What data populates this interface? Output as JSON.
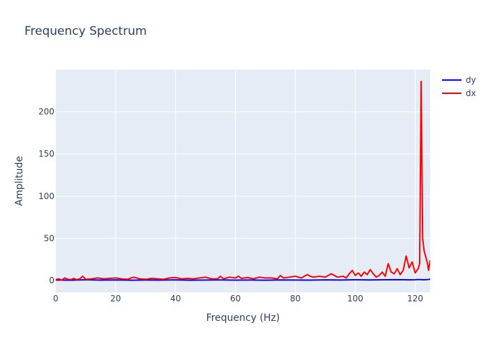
{
  "chart_data": {
    "type": "line",
    "title": "Frequency Spectrum",
    "xlabel": "Frequency (Hz)",
    "ylabel": "Amplitude",
    "xlim": [
      0,
      125
    ],
    "ylim": [
      -14,
      250
    ],
    "xticks": [
      0,
      20,
      40,
      60,
      80,
      100,
      120
    ],
    "xtick_labels": [
      "0",
      "20",
      "40",
      "60",
      "80",
      "100",
      "120"
    ],
    "yticks": [
      0,
      50,
      100,
      150,
      200
    ],
    "ytick_labels": [
      "0",
      "50",
      "100",
      "150",
      "200"
    ],
    "grid": true,
    "legend_position": "top-right",
    "plot_bgcolor": "#e5ecf6",
    "series": [
      {
        "name": "dy",
        "color": "#0000ff",
        "x": [
          0,
          5,
          10,
          15,
          20,
          25,
          30,
          35,
          40,
          45,
          50,
          55,
          60,
          65,
          70,
          75,
          80,
          85,
          90,
          95,
          100,
          105,
          110,
          115,
          118,
          120,
          121,
          122,
          123,
          124,
          125
        ],
        "y": [
          0.5,
          0.3,
          0.8,
          0.4,
          0.6,
          0.3,
          0.5,
          0.4,
          0.7,
          0.3,
          0.5,
          0.6,
          0.4,
          0.5,
          0.3,
          0.6,
          0.5,
          0.4,
          0.7,
          0.5,
          0.9,
          0.6,
          0.8,
          1.0,
          0.7,
          0.9,
          1.2,
          1.0,
          0.8,
          1.1,
          1.5
        ]
      },
      {
        "name": "dx",
        "color": "#ff0000",
        "x": [
          0,
          1,
          2,
          3,
          4,
          5,
          6,
          7,
          8,
          9,
          10,
          12,
          14,
          16,
          18,
          20,
          22,
          24,
          26,
          28,
          30,
          32,
          34,
          36,
          38,
          40,
          42,
          44,
          46,
          48,
          50,
          52,
          54,
          55,
          56,
          58,
          60,
          61,
          62,
          64,
          66,
          68,
          70,
          72,
          74,
          75,
          76,
          78,
          80,
          82,
          84,
          85,
          86,
          88,
          90,
          92,
          93,
          94,
          96,
          97,
          98,
          99,
          100,
          101,
          102,
          103,
          104,
          105,
          106,
          107,
          108,
          109,
          110,
          111,
          112,
          113,
          114,
          115,
          116,
          117,
          118,
          119,
          120,
          121,
          121.5,
          122,
          122.5,
          123,
          124,
          124.5,
          125
        ],
        "y": [
          1,
          2,
          0.5,
          3,
          1.5,
          1,
          2.5,
          1,
          2,
          5,
          1.5,
          2,
          3,
          2,
          2.5,
          3,
          2,
          1.5,
          4,
          2,
          1.5,
          2.5,
          2,
          1.5,
          3,
          3.5,
          2,
          2.5,
          2,
          3,
          4,
          2,
          2,
          5,
          2,
          4,
          3,
          5,
          2.5,
          3.5,
          2,
          4,
          3,
          3,
          2,
          6,
          3,
          4,
          5,
          3,
          7,
          5,
          4,
          5,
          4,
          8,
          6,
          4,
          5,
          3,
          8,
          12,
          6,
          9,
          5,
          10,
          7,
          13,
          8,
          4,
          6,
          10,
          5,
          20,
          10,
          8,
          14,
          7,
          12,
          29,
          15,
          22,
          9,
          14,
          20,
          236,
          50,
          35,
          22,
          12,
          24
        ]
      }
    ]
  }
}
